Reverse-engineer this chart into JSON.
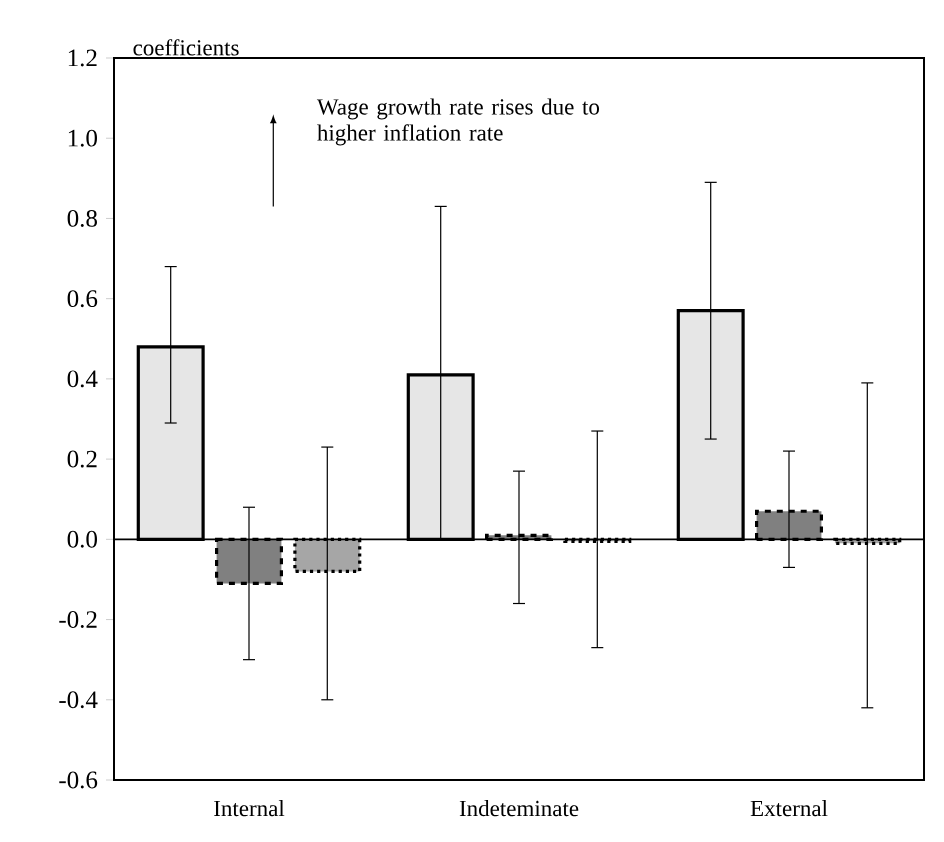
{
  "chart_data": {
    "type": "bar",
    "ylabel": "coefficients",
    "categories": [
      "Internal",
      "Indeteminate",
      "External"
    ],
    "series": [
      {
        "color": "#e6e6e6",
        "values": [
          0.48,
          0.41,
          0.57
        ],
        "errors": [
          [
            0.29,
            0.68
          ],
          [
            0.0,
            0.83
          ],
          [
            0.25,
            0.89
          ]
        ]
      },
      {
        "color": "#808080",
        "values": [
          -0.11,
          0.01,
          0.07
        ],
        "errors": [
          [
            -0.3,
            0.08
          ],
          [
            -0.16,
            0.17
          ],
          [
            -0.07,
            0.22
          ]
        ]
      },
      {
        "color": "#a6a6a6",
        "values": [
          -0.08,
          -0.005,
          -0.01
        ],
        "errors": [
          [
            -0.4,
            0.23
          ],
          [
            -0.27,
            0.27
          ],
          [
            -0.42,
            0.39
          ]
        ]
      }
    ],
    "ylim": [
      -0.6,
      1.2
    ],
    "yticks": [
      -0.6,
      -0.4,
      -0.2,
      {
        "value": 0,
        "label": "0.0"
      },
      0.2,
      0.4,
      0.6,
      0.8,
      {
        "value": 1,
        "label": "1.0"
      },
      1.2
    ],
    "ref_lines": [
      {
        "axis": "y",
        "value": 0
      }
    ],
    "annotations": [
      "Wage growth rate rises due to higher inflation rate"
    ]
  }
}
